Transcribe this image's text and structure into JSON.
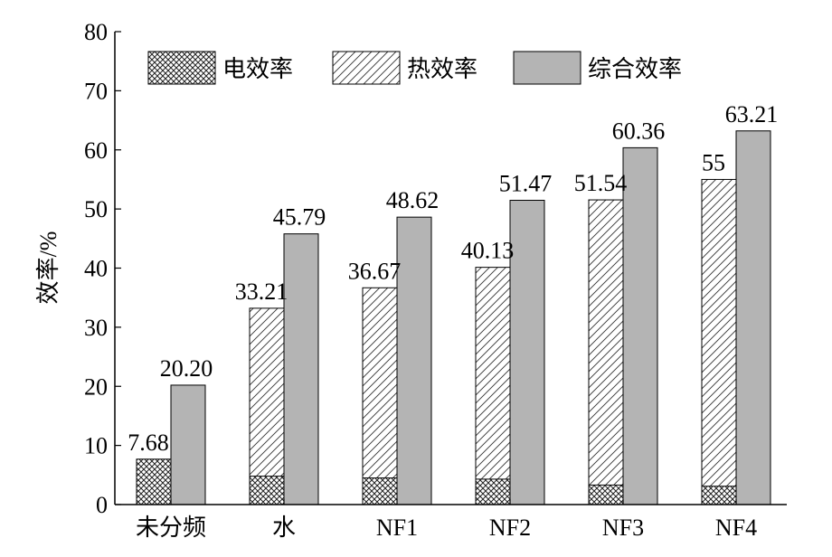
{
  "chart_data": {
    "type": "bar",
    "ylabel": "效率/%",
    "xlabel": "",
    "ylim": [
      0,
      80
    ],
    "yticks": [
      0,
      10,
      20,
      30,
      40,
      50,
      60,
      70,
      80
    ],
    "categories": [
      "未分频",
      "水",
      "NF1",
      "NF2",
      "NF3",
      "NF4"
    ],
    "series": [
      {
        "name": "电效率",
        "values": [
          7.68,
          4.8,
          4.5,
          4.3,
          3.3,
          3.1
        ],
        "pattern": "crosshatch",
        "color": "#ffffff"
      },
      {
        "name": "热效率",
        "values": [
          null,
          33.21,
          36.67,
          40.13,
          51.54,
          55
        ],
        "pattern": "diagonal",
        "color": "#ffffff"
      },
      {
        "name": "综合效率",
        "values": [
          20.2,
          45.79,
          48.62,
          51.47,
          60.36,
          63.21
        ],
        "pattern": "solid",
        "color": "#b4b4b4"
      }
    ],
    "left_bar_labels": [
      "7.68",
      "33.21",
      "36.67",
      "40.13",
      "51.54",
      "55"
    ],
    "right_bar_labels": [
      "20.20",
      "45.79",
      "48.62",
      "51.47",
      "60.36",
      "63.21"
    ],
    "legend_position": "top",
    "grid": false
  }
}
